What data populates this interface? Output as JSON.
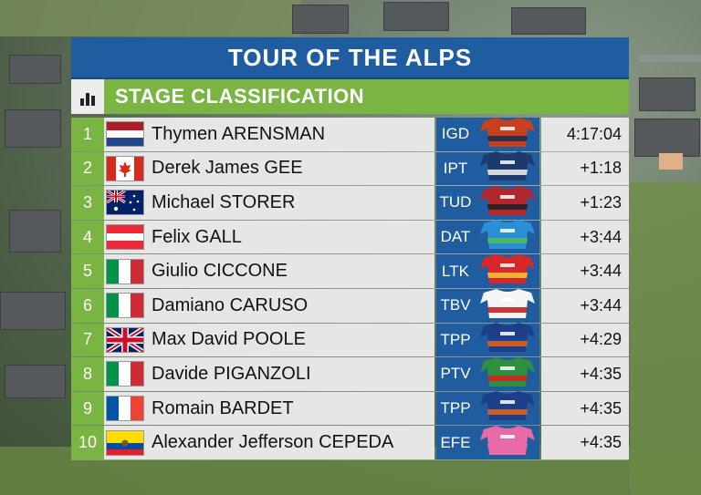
{
  "header": {
    "title": "TOUR OF THE ALPS",
    "subtitle": "STAGE CLASSIFICATION",
    "icon": "bar-chart-icon"
  },
  "colors": {
    "title_bar": "#1f5da0",
    "accent_green": "#7ab443",
    "row_bg": "#e6e6e6"
  },
  "classification": [
    {
      "rank": "1",
      "flag": "netherlands",
      "name": "Thymen ARENSMAN",
      "team": "IGD",
      "jersey": [
        "#c8401e",
        "#1b2b4a"
      ],
      "time": "4:17:04"
    },
    {
      "rank": "2",
      "flag": "canada",
      "name": "Derek James GEE",
      "team": "IPT",
      "jersey": [
        "#1c3a6b",
        "#e8e8e8"
      ],
      "time": "+1:18"
    },
    {
      "rank": "3",
      "flag": "australia",
      "name": "Michael STORER",
      "team": "TUD",
      "jersey": [
        "#b4262e",
        "#222222"
      ],
      "time": "+1:23"
    },
    {
      "rank": "4",
      "flag": "austria",
      "name": "Felix GALL",
      "team": "DAT",
      "jersey": [
        "#2a8fd6",
        "#4fbf5a"
      ],
      "time": "+3:44"
    },
    {
      "rank": "5",
      "flag": "italy",
      "name": "Giulio CICCONE",
      "team": "LTK",
      "jersey": [
        "#d62828",
        "#f2c230"
      ],
      "time": "+3:44"
    },
    {
      "rank": "6",
      "flag": "italy",
      "name": "Damiano CARUSO",
      "team": "TBV",
      "jersey": [
        "#f4f4f4",
        "#c82020"
      ],
      "time": "+3:44"
    },
    {
      "rank": "7",
      "flag": "uk",
      "name": "Max David POOLE",
      "team": "TPP",
      "jersey": [
        "#1c3f8a",
        "#e06020"
      ],
      "time": "+4:29"
    },
    {
      "rank": "8",
      "flag": "italy",
      "name": "Davide PIGANZOLI",
      "team": "PTV",
      "jersey": [
        "#2e8f3e",
        "#d42020"
      ],
      "time": "+4:35"
    },
    {
      "rank": "9",
      "flag": "france",
      "name": "Romain BARDET",
      "team": "TPP",
      "jersey": [
        "#1c3f8a",
        "#e06020"
      ],
      "time": "+4:35"
    },
    {
      "rank": "10",
      "flag": "ecuador",
      "name": "Alexander Jefferson CEPEDA",
      "team": "EFE",
      "jersey": [
        "#e86aa8",
        "#e86aa8"
      ],
      "time": "+4:35"
    }
  ]
}
